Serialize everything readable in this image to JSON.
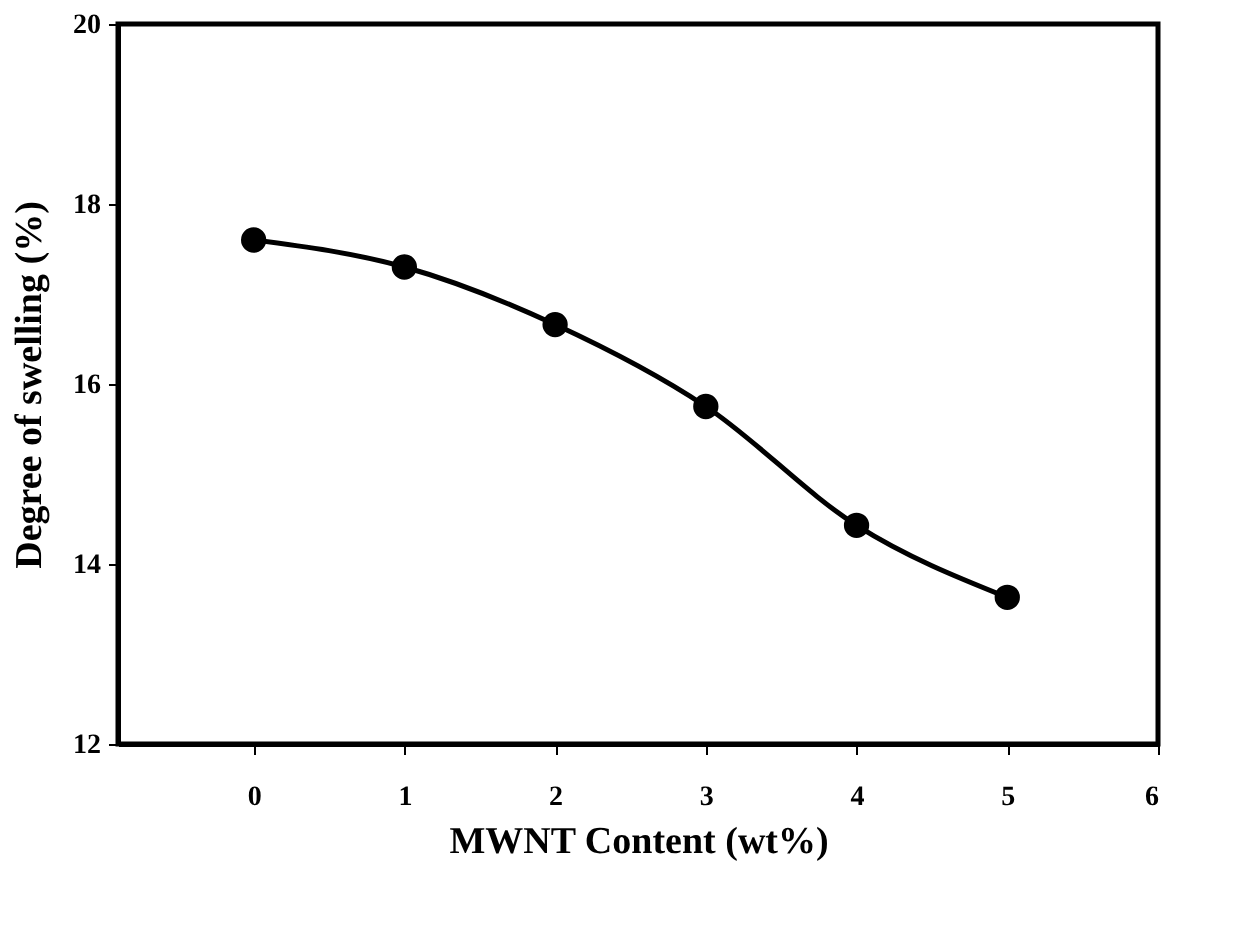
{
  "chart_data": {
    "type": "line",
    "xlabel": "MWNT Content (wt%)",
    "ylabel": "Degree of swelling (%)",
    "x": [
      0,
      1,
      2,
      3,
      4,
      5
    ],
    "series": [
      {
        "color": "#000000",
        "values": [
          17.6,
          17.3,
          16.66,
          15.75,
          14.43,
          13.63
        ]
      }
    ],
    "xlim": [
      -0.9,
      6
    ],
    "xticks": [
      0,
      1,
      2,
      3,
      4,
      5,
      6
    ],
    "ylim": [
      12,
      20
    ],
    "yticks": [
      12,
      14,
      16,
      18,
      20
    ],
    "marker": "circle",
    "line_style": "solid",
    "grid": false,
    "legend": false
  }
}
